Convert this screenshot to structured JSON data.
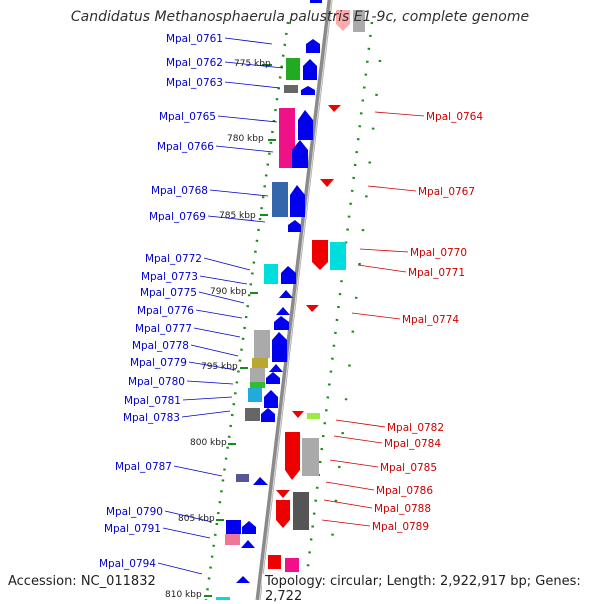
{
  "title": "Candidatus Methanosphaerula palustris E1-9c, complete genome",
  "footer": {
    "accession": "Accession: NC_011832",
    "topology": "Topology: circular; Length: 2,922,917 bp; Genes: 2,722"
  },
  "colors": {
    "backbone": "#8a8a8a",
    "forward_label": "#0000cc",
    "reverse_label": "#cc0000",
    "ticks": "#1a8a1a",
    "forward_gene": "#0000ee",
    "reverse_gene": "#ee0000"
  },
  "kbp_ticks": [
    {
      "label": "775 kbp",
      "pos": 775
    },
    {
      "label": "780 kbp",
      "pos": 780
    },
    {
      "label": "785 kbp",
      "pos": 785
    },
    {
      "label": "790 kbp",
      "pos": 790
    },
    {
      "label": "795 kbp",
      "pos": 795
    },
    {
      "label": "800 kbp",
      "pos": 800
    },
    {
      "label": "805 kbp",
      "pos": 805
    },
    {
      "label": "810 kbp",
      "pos": 810
    }
  ],
  "forward_genes": [
    "Mpal_0761",
    "Mpal_0762",
    "Mpal_0763",
    "Mpal_0765",
    "Mpal_0766",
    "Mpal_0768",
    "Mpal_0769",
    "Mpal_0772",
    "Mpal_0773",
    "Mpal_0775",
    "Mpal_0776",
    "Mpal_0777",
    "Mpal_0778",
    "Mpal_0779",
    "Mpal_0780",
    "Mpal_0781",
    "Mpal_0783",
    "Mpal_0787",
    "Mpal_0790",
    "Mpal_0791",
    "Mpal_0794"
  ],
  "reverse_genes": [
    "Mpal_0764",
    "Mpal_0767",
    "Mpal_0770",
    "Mpal_0771",
    "Mpal_0774",
    "Mpal_0782",
    "Mpal_0784",
    "Mpal_0785",
    "Mpal_0786",
    "Mpal_0788",
    "Mpal_0789"
  ]
}
